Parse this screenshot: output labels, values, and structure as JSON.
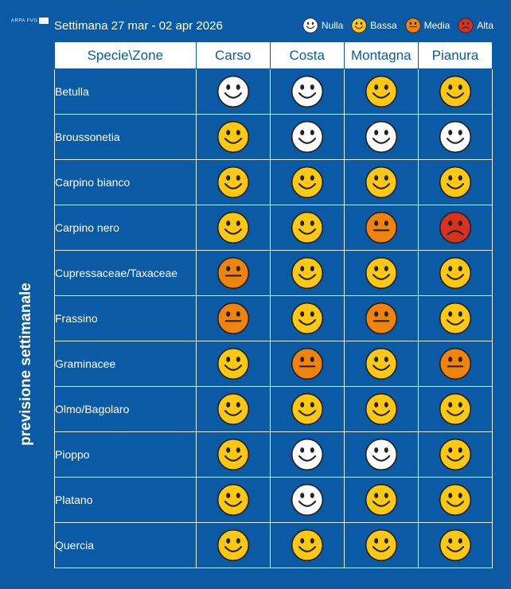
{
  "header": {
    "logo_text": "ARPA FVG",
    "title": "Settimana 27 mar - 02 apr 2026"
  },
  "legend": [
    {
      "level": "nulla",
      "label": "Nulla",
      "color": "#ffffff"
    },
    {
      "level": "bassa",
      "label": "Bassa",
      "color": "#fcc812"
    },
    {
      "level": "media",
      "label": "Media",
      "color": "#f0830c"
    },
    {
      "level": "alta",
      "label": "Alta",
      "color": "#d9311f"
    }
  ],
  "side_label": "previsione settimanale",
  "table": {
    "columns": [
      "Specie\\Zone",
      "Carso",
      "Costa",
      "Montagna",
      "Pianura"
    ],
    "rows": [
      {
        "species": "Betulla",
        "levels": [
          "nulla",
          "nulla",
          "bassa",
          "bassa"
        ]
      },
      {
        "species": "Broussonetia",
        "levels": [
          "bassa",
          "nulla",
          "nulla",
          "nulla"
        ]
      },
      {
        "species": "Carpino bianco",
        "levels": [
          "bassa",
          "bassa",
          "bassa",
          "bassa"
        ]
      },
      {
        "species": "Carpino nero",
        "levels": [
          "bassa",
          "bassa",
          "media",
          "alta"
        ]
      },
      {
        "species": "Cupressaceae/Taxaceae",
        "levels": [
          "media",
          "bassa",
          "bassa",
          "bassa"
        ]
      },
      {
        "species": "Frassino",
        "levels": [
          "media",
          "bassa",
          "media",
          "bassa"
        ]
      },
      {
        "species": "Graminacee",
        "levels": [
          "bassa",
          "media",
          "bassa",
          "media"
        ]
      },
      {
        "species": "Olmo/Bagolaro",
        "levels": [
          "bassa",
          "bassa",
          "bassa",
          "bassa"
        ]
      },
      {
        "species": "Pioppo",
        "levels": [
          "bassa",
          "nulla",
          "nulla",
          "bassa"
        ]
      },
      {
        "species": "Platano",
        "levels": [
          "bassa",
          "nulla",
          "bassa",
          "bassa"
        ]
      },
      {
        "species": "Quercia",
        "levels": [
          "bassa",
          "bassa",
          "bassa",
          "bassa"
        ]
      }
    ]
  }
}
